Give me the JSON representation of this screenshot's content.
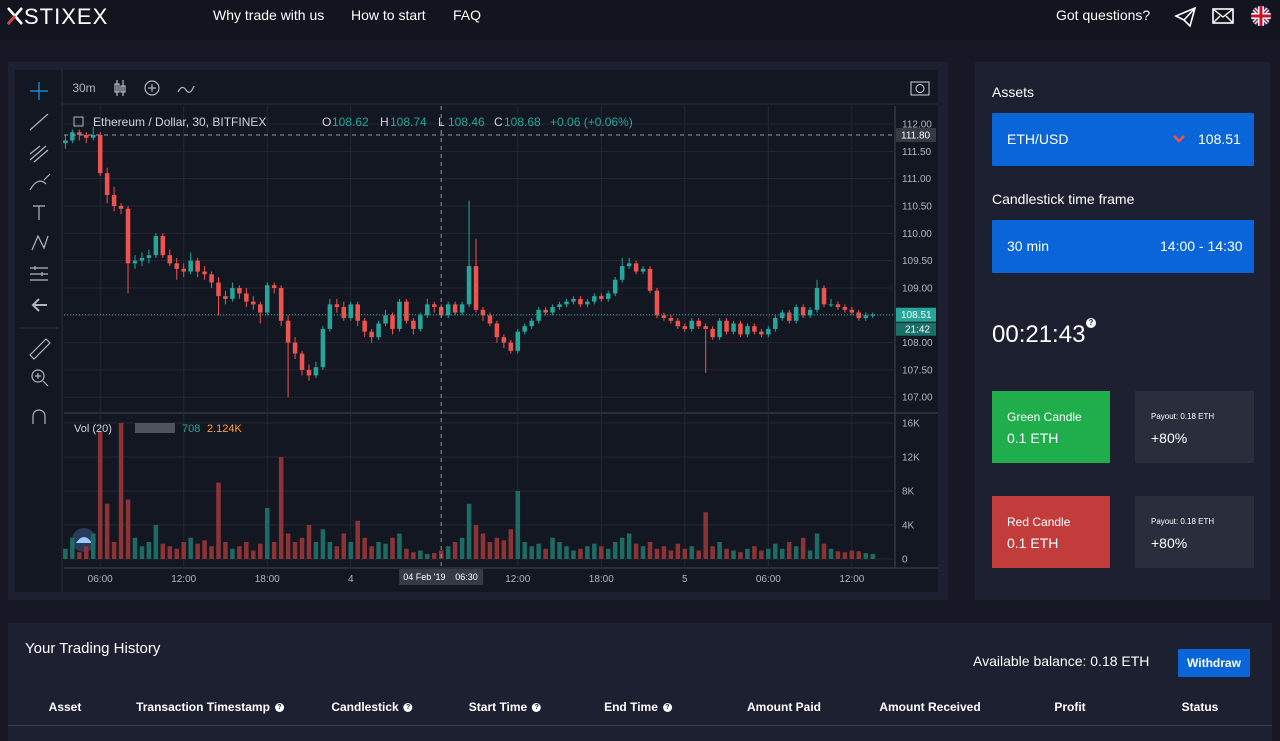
{
  "header": {
    "logo": "STIXEX",
    "nav": [
      "Why trade with us",
      "How to start",
      "FAQ"
    ],
    "questions": "Got questions?"
  },
  "chart": {
    "type": "candlestick",
    "interval": "30m",
    "symbol": "Ethereum / Dollar, 30, BITFINEX",
    "legend": [
      {
        "key": "O",
        "value": 108.62
      },
      {
        "key": "H",
        "value": 108.74
      },
      {
        "key": "L",
        "value": 108.46
      },
      {
        "key": "C",
        "value": 108.68
      }
    ],
    "change": "+0.06 (+0.06%)",
    "up_color": "#26a69a",
    "down_color": "#ef5350",
    "vol_up_color": "#1e6a64",
    "vol_down_color": "#8c3336",
    "candles": [
      [
        111.65,
        111.8,
        111.55,
        111.7
      ],
      [
        111.7,
        111.9,
        111.65,
        111.85
      ],
      [
        111.85,
        111.9,
        111.7,
        111.8
      ],
      [
        111.8,
        111.85,
        111.65,
        111.75
      ],
      [
        111.75,
        111.95,
        111.7,
        111.8
      ],
      [
        111.8,
        111.85,
        111.05,
        111.1
      ],
      [
        111.1,
        111.2,
        110.55,
        110.7
      ],
      [
        110.7,
        110.85,
        110.4,
        110.5
      ],
      [
        110.5,
        110.55,
        110.35,
        110.45
      ],
      [
        110.45,
        110.5,
        108.9,
        109.45
      ],
      [
        109.45,
        109.6,
        109.35,
        109.5
      ],
      [
        109.5,
        109.65,
        109.4,
        109.55
      ],
      [
        109.55,
        109.7,
        109.45,
        109.6
      ],
      [
        109.6,
        110.0,
        109.55,
        109.95
      ],
      [
        109.95,
        110.0,
        109.55,
        109.6
      ],
      [
        109.6,
        109.7,
        109.4,
        109.45
      ],
      [
        109.45,
        109.55,
        109.15,
        109.35
      ],
      [
        109.35,
        109.45,
        109.2,
        109.3
      ],
      [
        109.3,
        109.65,
        109.25,
        109.5
      ],
      [
        109.5,
        109.55,
        109.2,
        109.3
      ],
      [
        109.3,
        109.4,
        109.15,
        109.25
      ],
      [
        109.25,
        109.3,
        109.0,
        109.1
      ],
      [
        109.1,
        109.2,
        108.5,
        108.85
      ],
      [
        108.85,
        108.95,
        108.7,
        108.8
      ],
      [
        108.8,
        109.1,
        108.75,
        109.0
      ],
      [
        109.0,
        109.05,
        108.8,
        108.9
      ],
      [
        108.9,
        109.0,
        108.65,
        108.75
      ],
      [
        108.75,
        108.85,
        108.6,
        108.7
      ],
      [
        108.7,
        108.75,
        108.35,
        108.55
      ],
      [
        108.55,
        109.1,
        108.5,
        109.05
      ],
      [
        109.05,
        109.1,
        108.9,
        109.0
      ],
      [
        109.0,
        109.05,
        108.3,
        108.4
      ],
      [
        108.4,
        108.5,
        107.0,
        108.0
      ],
      [
        108.0,
        108.1,
        107.7,
        107.8
      ],
      [
        107.8,
        107.85,
        107.4,
        107.5
      ],
      [
        107.5,
        107.6,
        107.3,
        107.4
      ],
      [
        107.4,
        107.65,
        107.35,
        107.55
      ],
      [
        107.55,
        108.3,
        107.5,
        108.25
      ],
      [
        108.25,
        108.8,
        108.2,
        108.7
      ],
      [
        108.7,
        108.8,
        108.55,
        108.65
      ],
      [
        108.65,
        108.75,
        108.4,
        108.45
      ],
      [
        108.45,
        108.75,
        108.4,
        108.7
      ],
      [
        108.7,
        108.75,
        108.3,
        108.4
      ],
      [
        108.4,
        108.45,
        108.1,
        108.2
      ],
      [
        108.2,
        108.25,
        108.0,
        108.1
      ],
      [
        108.1,
        108.4,
        108.05,
        108.35
      ],
      [
        108.35,
        108.6,
        108.3,
        108.5
      ],
      [
        108.5,
        108.55,
        108.15,
        108.25
      ],
      [
        108.25,
        108.8,
        108.2,
        108.75
      ],
      [
        108.75,
        108.8,
        108.35,
        108.4
      ],
      [
        108.4,
        108.45,
        108.15,
        108.25
      ],
      [
        108.25,
        108.55,
        108.2,
        108.5
      ],
      [
        108.5,
        108.8,
        108.45,
        108.7
      ],
      [
        108.7,
        108.75,
        108.55,
        108.65
      ],
      [
        108.65,
        108.7,
        108.45,
        108.5
      ],
      [
        108.5,
        108.75,
        108.45,
        108.7
      ],
      [
        108.7,
        108.75,
        108.5,
        108.55
      ],
      [
        108.55,
        108.75,
        108.5,
        108.7
      ],
      [
        108.7,
        110.6,
        108.65,
        109.4
      ],
      [
        109.4,
        109.9,
        108.55,
        108.6
      ],
      [
        108.6,
        108.65,
        108.4,
        108.5
      ],
      [
        108.5,
        108.55,
        108.3,
        108.35
      ],
      [
        108.35,
        108.4,
        108.0,
        108.1
      ],
      [
        108.1,
        108.15,
        107.9,
        108.0
      ],
      [
        108.0,
        108.05,
        107.8,
        107.85
      ],
      [
        107.85,
        108.25,
        107.8,
        108.2
      ],
      [
        108.2,
        108.35,
        108.15,
        108.3
      ],
      [
        108.3,
        108.45,
        108.25,
        108.4
      ],
      [
        108.4,
        108.65,
        108.35,
        108.6
      ],
      [
        108.6,
        108.65,
        108.5,
        108.55
      ],
      [
        108.55,
        108.7,
        108.5,
        108.65
      ],
      [
        108.65,
        108.75,
        108.6,
        108.7
      ],
      [
        108.7,
        108.8,
        108.65,
        108.75
      ],
      [
        108.75,
        108.85,
        108.7,
        108.8
      ],
      [
        108.8,
        108.85,
        108.65,
        108.7
      ],
      [
        108.7,
        108.8,
        108.65,
        108.75
      ],
      [
        108.75,
        108.9,
        108.7,
        108.85
      ],
      [
        108.85,
        108.9,
        108.75,
        108.8
      ],
      [
        108.8,
        108.95,
        108.75,
        108.9
      ],
      [
        108.9,
        109.2,
        108.85,
        109.15
      ],
      [
        109.15,
        109.55,
        109.1,
        109.4
      ],
      [
        109.4,
        109.55,
        109.35,
        109.45
      ],
      [
        109.45,
        109.5,
        109.25,
        109.3
      ],
      [
        109.3,
        109.4,
        109.25,
        109.35
      ],
      [
        109.35,
        109.4,
        108.9,
        108.95
      ],
      [
        108.95,
        109.0,
        108.45,
        108.5
      ],
      [
        108.5,
        108.55,
        108.4,
        108.45
      ],
      [
        108.45,
        108.5,
        108.35,
        108.4
      ],
      [
        108.4,
        108.45,
        108.25,
        108.3
      ],
      [
        108.3,
        108.35,
        108.2,
        108.25
      ],
      [
        108.25,
        108.45,
        108.2,
        108.4
      ],
      [
        108.4,
        108.45,
        108.25,
        108.3
      ],
      [
        108.3,
        108.35,
        107.45,
        108.25
      ],
      [
        108.25,
        108.3,
        108.05,
        108.1
      ],
      [
        108.1,
        108.45,
        108.05,
        108.4
      ],
      [
        108.4,
        108.45,
        108.15,
        108.2
      ],
      [
        108.2,
        108.4,
        108.15,
        108.35
      ],
      [
        108.35,
        108.4,
        108.1,
        108.15
      ],
      [
        108.15,
        108.35,
        108.1,
        108.3
      ],
      [
        108.3,
        108.35,
        108.15,
        108.2
      ],
      [
        108.2,
        108.25,
        108.1,
        108.15
      ],
      [
        108.15,
        108.3,
        108.1,
        108.25
      ],
      [
        108.25,
        108.5,
        108.2,
        108.45
      ],
      [
        108.45,
        108.6,
        108.4,
        108.55
      ],
      [
        108.55,
        108.6,
        108.35,
        108.4
      ],
      [
        108.4,
        108.7,
        108.35,
        108.65
      ],
      [
        108.65,
        108.7,
        108.45,
        108.5
      ],
      [
        108.5,
        108.65,
        108.45,
        108.6
      ],
      [
        108.6,
        109.15,
        108.55,
        109.0
      ],
      [
        109.0,
        109.05,
        108.65,
        108.7
      ],
      [
        108.7,
        108.8,
        108.65,
        108.7
      ],
      [
        108.7,
        108.75,
        108.6,
        108.65
      ],
      [
        108.65,
        108.7,
        108.55,
        108.6
      ],
      [
        108.6,
        108.65,
        108.5,
        108.55
      ],
      [
        108.55,
        108.6,
        108.4,
        108.45
      ],
      [
        108.45,
        108.55,
        108.4,
        108.5
      ],
      [
        108.5,
        108.55,
        108.45,
        108.51
      ]
    ],
    "volumes": [
      1200,
      2500,
      800,
      1500,
      3000,
      15000,
      6500,
      2000,
      16000,
      7000,
      2500,
      1500,
      2000,
      4000,
      1800,
      1500,
      1200,
      2000,
      2500,
      1800,
      2200,
      1500,
      9000,
      2000,
      1200,
      1500,
      2000,
      1000,
      1800,
      6000,
      2000,
      12000,
      3000,
      2000,
      2500,
      4000,
      2000,
      3500,
      2000,
      1500,
      3000,
      2000,
      4500,
      2500,
      1500,
      2000,
      1800,
      2500,
      3000,
      1200,
      800,
      1000,
      600,
      708,
      1000,
      1500,
      2000,
      2500,
      6500,
      4000,
      3000,
      2000,
      2500,
      2200,
      3500,
      8000,
      2000,
      1500,
      1800,
      1200,
      2500,
      2000,
      1500,
      1000,
      1200,
      1500,
      1800,
      1500,
      1200,
      2000,
      2500,
      3000,
      1800,
      1500,
      2000,
      1200,
      1500,
      1000,
      1800,
      1200,
      1500,
      1000,
      5500,
      1500,
      2000,
      1200,
      1000,
      800,
      1200,
      1500,
      1000,
      1200,
      1800,
      1200,
      2000,
      1500,
      2500,
      1000,
      3000,
      1800,
      1200,
      900,
      800,
      1000,
      900,
      700,
      600
    ],
    "xlim": [
      -0.2,
      119.2
    ],
    "xticks": [
      {
        "value": 5,
        "label": "06:00"
      },
      {
        "value": 17,
        "label": "12:00"
      },
      {
        "value": 29,
        "label": "18:00"
      },
      {
        "value": 41,
        "label": "4"
      },
      {
        "value": 65,
        "label": "12:00"
      },
      {
        "value": 77,
        "label": "18:00"
      },
      {
        "value": 89,
        "label": "5"
      },
      {
        "value": 101,
        "label": "06:00"
      },
      {
        "value": 113,
        "label": "12:00"
      }
    ],
    "ylim": [
      106.73,
      112.33
    ],
    "yticks": [
      {
        "value": 107,
        "label": "107.00"
      },
      {
        "value": 107.5,
        "label": "107.50"
      },
      {
        "value": 108,
        "label": "108.00"
      },
      {
        "value": 108.5,
        "label": "108.50"
      },
      {
        "value": 109,
        "label": "109.00"
      },
      {
        "value": 109.5,
        "label": "109.50"
      },
      {
        "value": 110,
        "label": "110.00"
      },
      {
        "value": 110.5,
        "label": "110.50"
      },
      {
        "value": 111,
        "label": "111.00"
      },
      {
        "value": 111.5,
        "label": "111.50"
      },
      {
        "value": 112,
        "label": "112.00"
      }
    ],
    "vol_legend": {
      "label": "Vol (20)",
      "value": 708,
      "ma": "2.124K"
    },
    "vylim": [
      -1060,
      17060
    ],
    "vyticks": [
      0,
      {
        "value": 4000,
        "label": "4K"
      },
      {
        "value": 8000,
        "label": "8K"
      },
      {
        "value": 12000,
        "label": "12K"
      },
      {
        "value": 16000,
        "label": "16K"
      }
    ],
    "last_price": 108.51,
    "countdown": "21:42",
    "crosshair": {
      "x": 54,
      "date": "04 Feb '19",
      "time": "06:30",
      "price": {
        "value": 111.8,
        "label": "111.80"
      }
    },
    "grid": true
  },
  "sidebar": {
    "assets_title": "Assets",
    "asset": "ETH/USD",
    "asset_price": 108.51,
    "timeframe_title": "Candlestick time frame",
    "timeframe": "30 min",
    "timeframe_range": "14:00 - 14:30",
    "timer": "00:21:43",
    "green": {
      "title": "Green Candle",
      "amount": "0.1 ETH",
      "payout": "Payout: 0.18 ETH",
      "percent": "+80%"
    },
    "red": {
      "title": "Red Candle",
      "amount": "0.1 ETH",
      "payout": "Payout: 0.18 ETH",
      "percent": "+80%"
    }
  },
  "history": {
    "title": "Your Trading History",
    "balance": "Available balance: 0.18 ETH",
    "withdraw": "Withdraw",
    "columns": [
      "Asset",
      "Transaction Timestamp",
      "Candlestick",
      "Start Time",
      "End Time",
      "Amount Paid",
      "Amount Received",
      "Profit",
      "Status"
    ]
  }
}
